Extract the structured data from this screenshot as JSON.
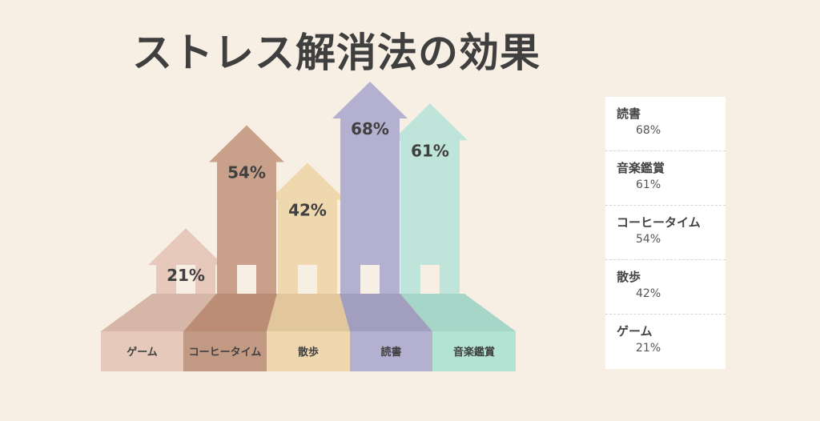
{
  "title": "ストレス解消法の効果",
  "chart_data": {
    "type": "bar",
    "title": "ストレス解消法の効果",
    "categories": [
      "ゲーム",
      "コーヒータイム",
      "散歩",
      "読書",
      "音楽鑑賞"
    ],
    "values": [
      21,
      54,
      42,
      68,
      61
    ],
    "value_labels": [
      "21%",
      "54%",
      "42%",
      "68%",
      "61%"
    ],
    "ylim": [
      0,
      100
    ],
    "colors": [
      "#e7c9bc",
      "#c9a08a",
      "#efd7ae",
      "#b4b0cf",
      "#bfe4d9"
    ],
    "base_colors": [
      "#d6b6a7",
      "#bb8d75",
      "#e2c69c",
      "#a29ebe",
      "#a5d6c7"
    ],
    "label_colors": [
      "#e7c9bc",
      "#c29a84",
      "#efd7b0",
      "#b4b0cf",
      "#b3e3d3"
    ]
  },
  "legend": [
    {
      "label": "読書",
      "value": "68%"
    },
    {
      "label": "音楽鑑賞",
      "value": "61%"
    },
    {
      "label": "コーヒータイム",
      "value": "54%"
    },
    {
      "label": "散歩",
      "value": "42%"
    },
    {
      "label": "ゲーム",
      "value": "21%"
    }
  ]
}
